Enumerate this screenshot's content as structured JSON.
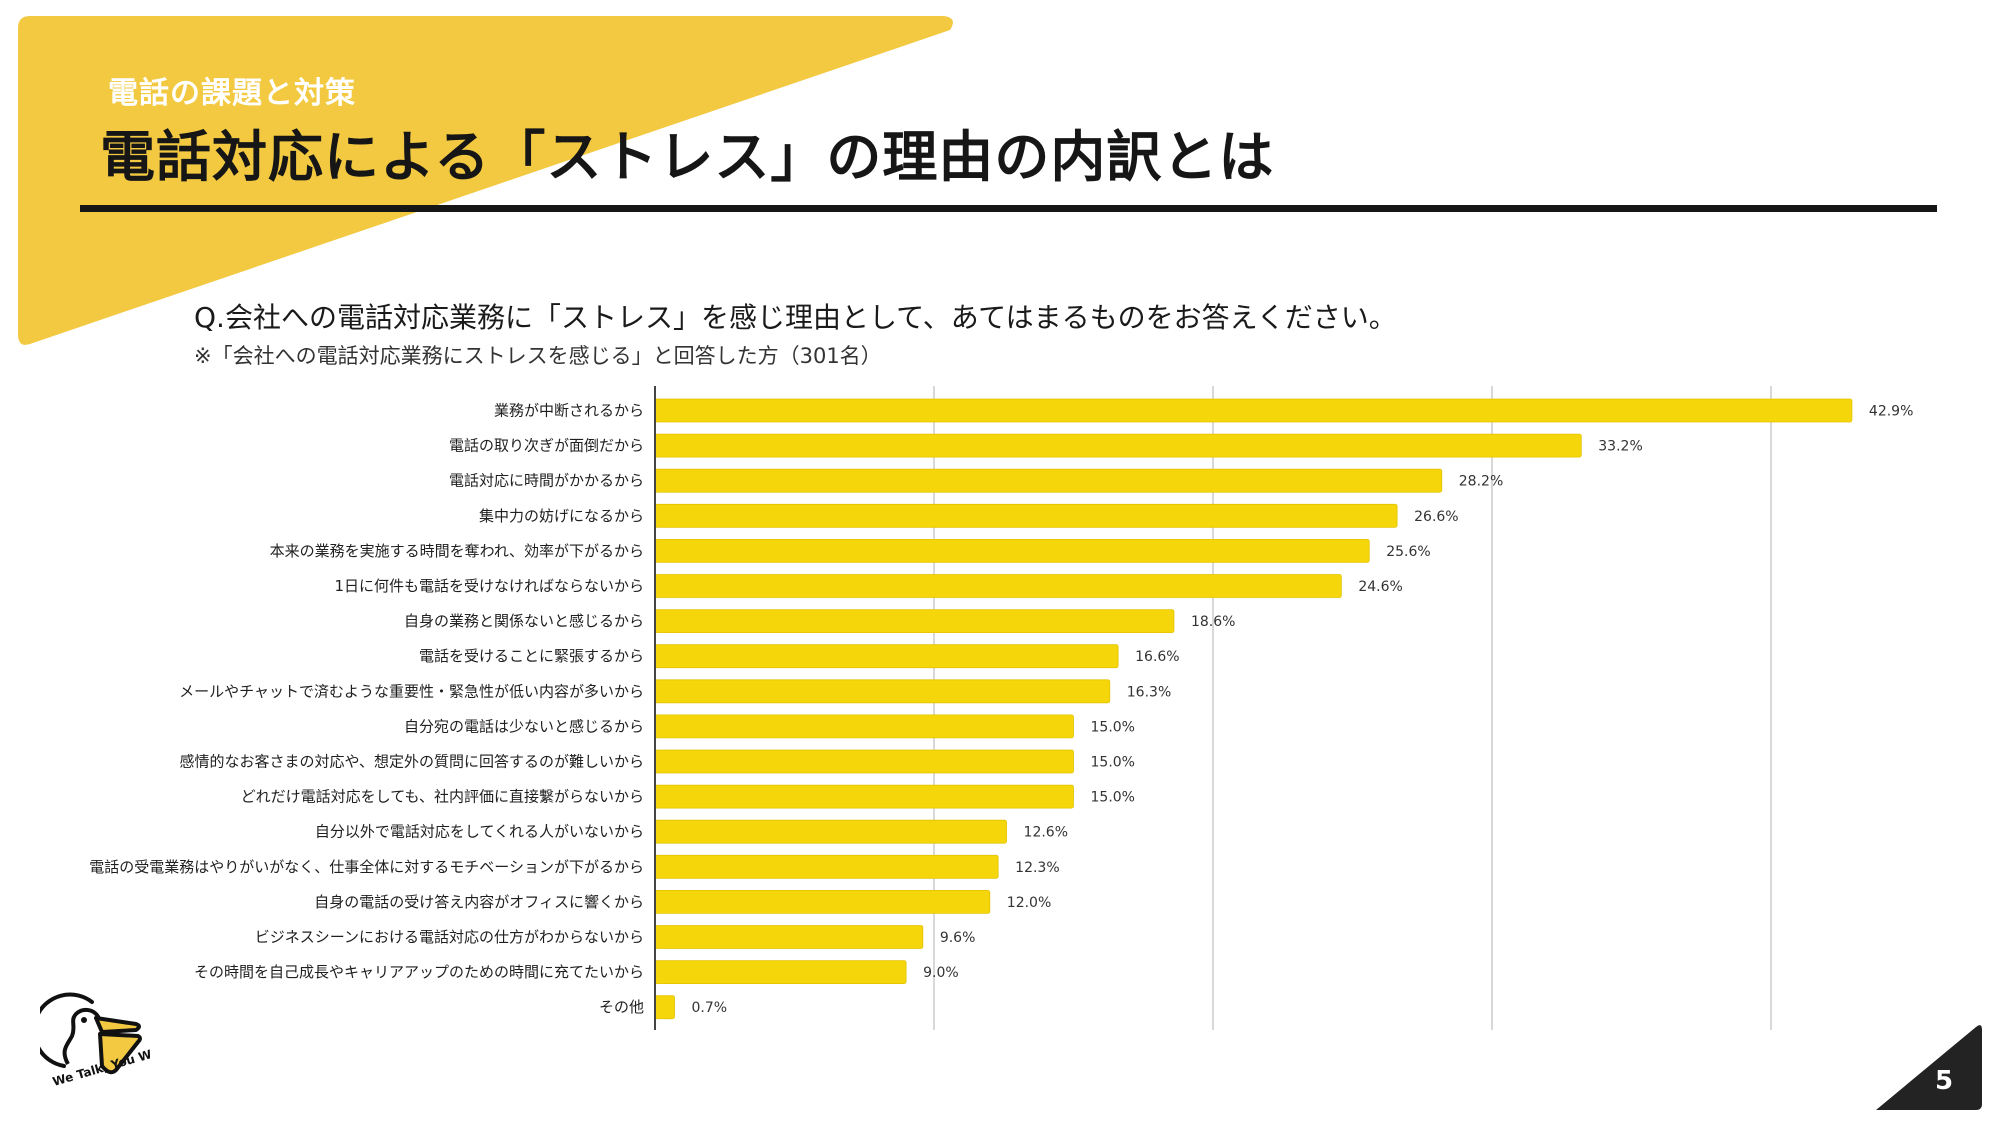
{
  "header": {
    "section_label": "電話の課題と対策",
    "title": "電話対応による「ストレス」の理由の内訳とは"
  },
  "question": {
    "text": "Q.会社への電話対応業務に「ストレス」を感じ理由として、あてはまるものをお答えください。",
    "note": "※「会社への電話対応業務にストレスを感じる」と回答した方（301名）"
  },
  "colors": {
    "accent_yellow": "#F2C940",
    "bar": "#F5D60A",
    "dark": "#232323",
    "grid": "#cccccc"
  },
  "chart_data": {
    "type": "bar",
    "orientation": "horizontal",
    "title": "",
    "xlabel": "",
    "ylabel": "",
    "unit": "%",
    "xlim": [
      0,
      43
    ],
    "gridlines": [
      10,
      20,
      30,
      40
    ],
    "grid": true,
    "legend": "none",
    "categories": [
      "業務が中断されるから",
      "電話の取り次ぎが面倒だから",
      "電話対応に時間がかかるから",
      "集中力の妨げになるから",
      "本来の業務を実施する時間を奪われ、効率が下がるから",
      "1日に何件も電話を受けなければならないから",
      "自身の業務と関係ないと感じるから",
      "電話を受けることに緊張するから",
      "メールやチャットで済むような重要性・緊急性が低い内容が多いから",
      "自分宛の電話は少ないと感じるから",
      "感情的なお客さまの対応や、想定外の質問に回答するのが難しいから",
      "どれだけ電話対応をしても、社内評価に直接繋がらないから",
      "自分以外で電話対応をしてくれる人がいないから",
      "電話の受電業務はやりがいがなく、仕事全体に対するモチベーションが下がるから",
      "自身の電話の受け答え内容がオフィスに響くから",
      "ビジネスシーンにおける電話対応の仕方がわからないから",
      "その時間を自己成長やキャリアアップのための時間に充てたいから",
      "その他"
    ],
    "values": [
      42.9,
      33.2,
      28.2,
      26.6,
      25.6,
      24.6,
      18.6,
      16.6,
      16.3,
      15.0,
      15.0,
      15.0,
      12.6,
      12.3,
      12.0,
      9.6,
      9.0,
      0.7
    ],
    "value_labels": [
      "42.9%",
      "33.2%",
      "28.2%",
      "26.6%",
      "25.6%",
      "24.6%",
      "18.6%",
      "16.6%",
      "16.3%",
      "15.0%",
      "15.0%",
      "15.0%",
      "12.6%",
      "12.3%",
      "12.0%",
      "9.6%",
      "9.0%",
      "0.7%"
    ]
  },
  "logo": {
    "icon": "pelican-logo-icon",
    "tagline": "We Talk, You Work."
  },
  "footer": {
    "page_number": "5"
  }
}
